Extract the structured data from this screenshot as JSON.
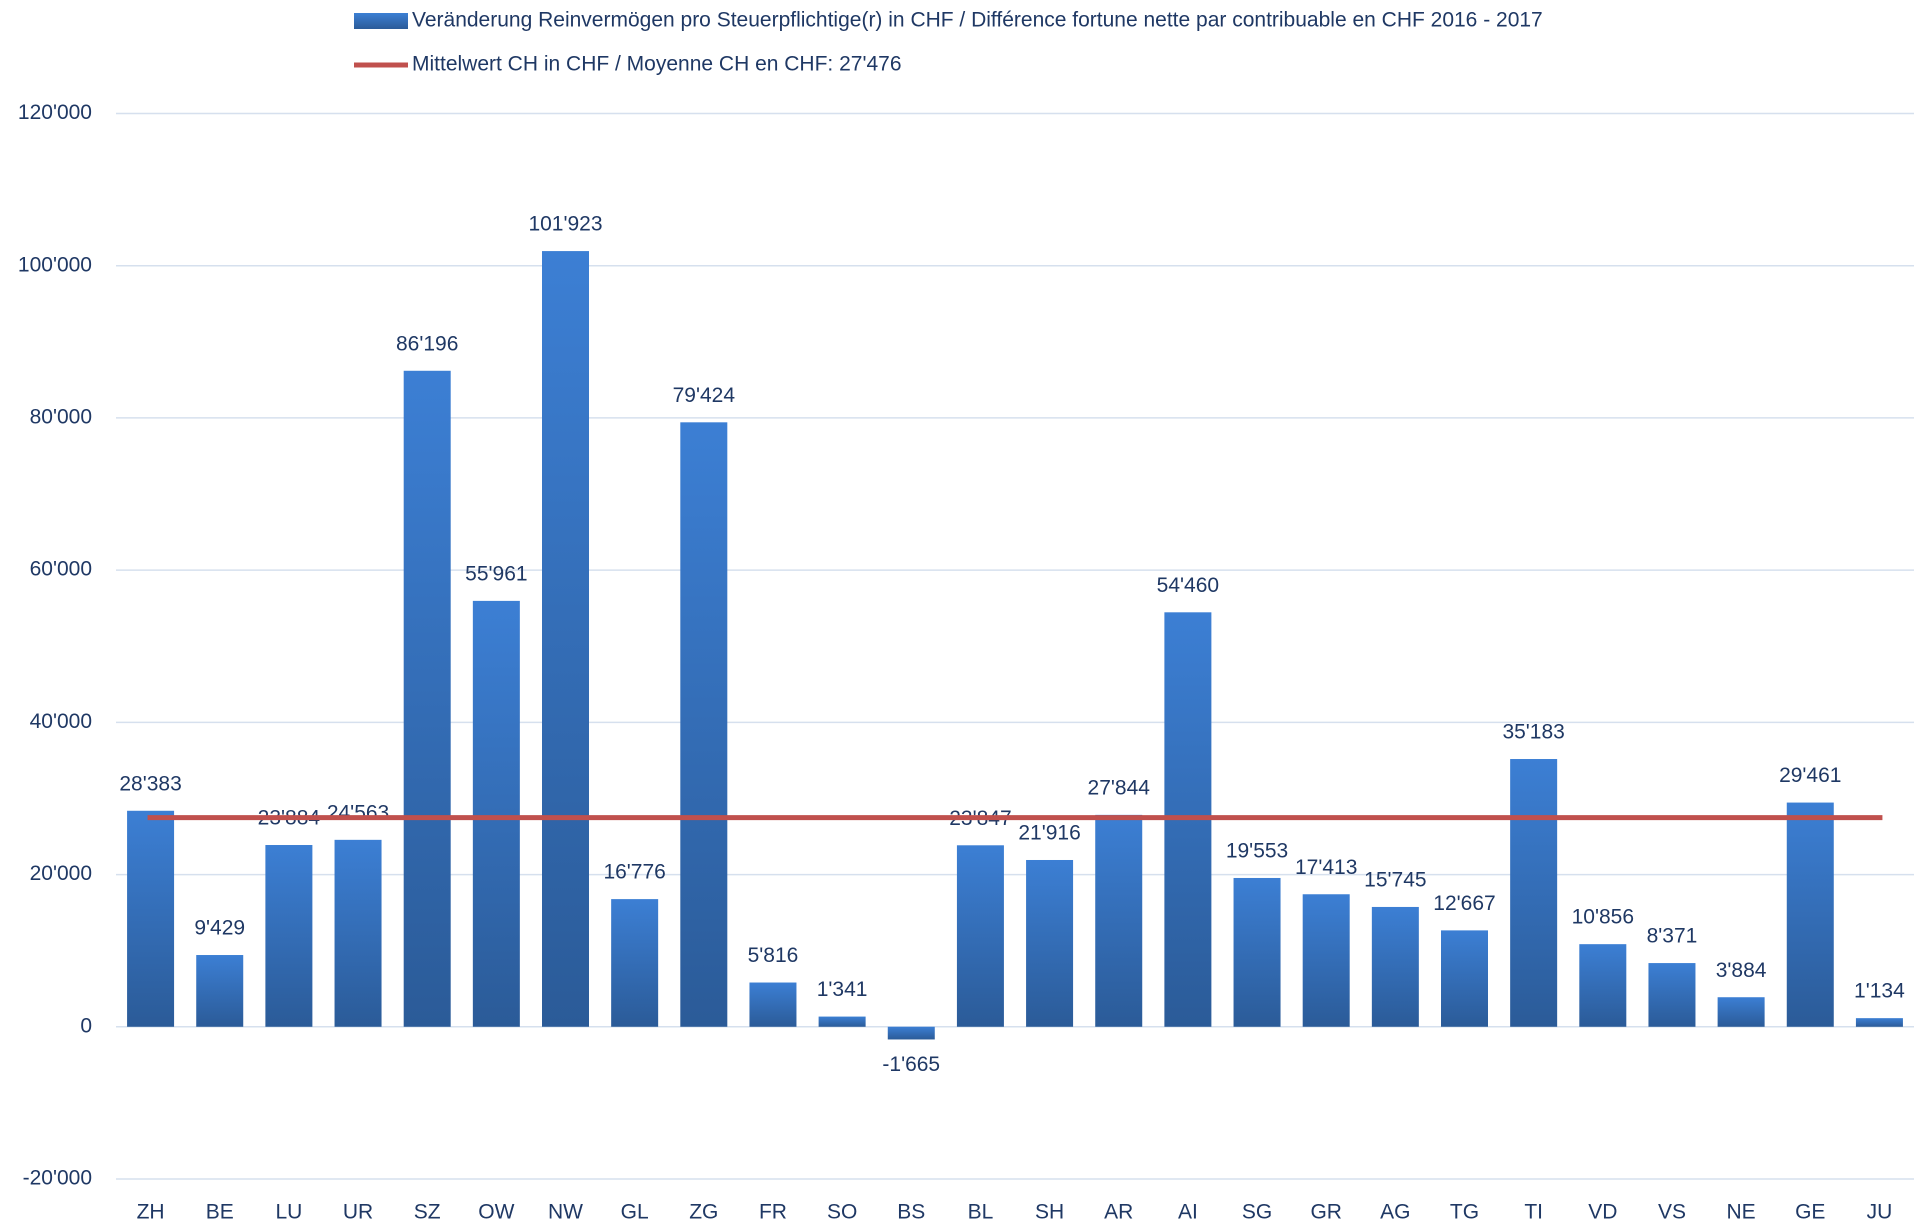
{
  "chart_data": {
    "type": "bar",
    "categories": [
      "ZH",
      "BE",
      "LU",
      "UR",
      "SZ",
      "OW",
      "NW",
      "GL",
      "ZG",
      "FR",
      "SO",
      "BS",
      "BL",
      "SH",
      "AR",
      "AI",
      "SG",
      "GR",
      "AG",
      "TG",
      "TI",
      "VD",
      "VS",
      "NE",
      "GE",
      "JU"
    ],
    "series": [
      {
        "name": "Veränderung Reinvermögen pro Steuerpflichtige(r) in CHF / Différence fortune nette par contribuable en CHF 2016 - 2017",
        "color": "#3a78c9",
        "values": [
          28383,
          9429,
          23884,
          24563,
          86196,
          55961,
          101923,
          16776,
          79424,
          5816,
          1341,
          -1665,
          23847,
          21916,
          27844,
          54460,
          19553,
          17413,
          15745,
          12667,
          35183,
          10856,
          8371,
          3884,
          29461,
          1134
        ],
        "value_labels": [
          "28'383",
          "9'429",
          "23'884",
          "24'563",
          "86'196",
          "55'961",
          "101'923",
          "16'776",
          "79'424",
          "5'816",
          "1'341",
          "-1'665",
          "23'847",
          "21'916",
          "27'844",
          "54'460",
          "19'553",
          "17'413",
          "15'745",
          "12'667",
          "35'183",
          "10'856",
          "8'371",
          "3'884",
          "29'461",
          "1'134"
        ]
      }
    ],
    "mean": {
      "name": "Mittelwert CH in CHF / Moyenne CH en CHF:  27'476",
      "value": 27476,
      "color": "#c0504d"
    },
    "ylim": [
      -20000,
      120000
    ],
    "yticks": [
      {
        "value": -20000,
        "label": "-20'000"
      },
      0,
      {
        "value": 20000,
        "label": "20'000"
      },
      {
        "value": 40000,
        "label": "40'000"
      },
      {
        "value": 60000,
        "label": "60'000"
      },
      {
        "value": 80000,
        "label": "80'000"
      },
      {
        "value": 100000,
        "label": "100'000"
      },
      {
        "value": 120000,
        "label": "120'000"
      }
    ],
    "grid": true
  }
}
